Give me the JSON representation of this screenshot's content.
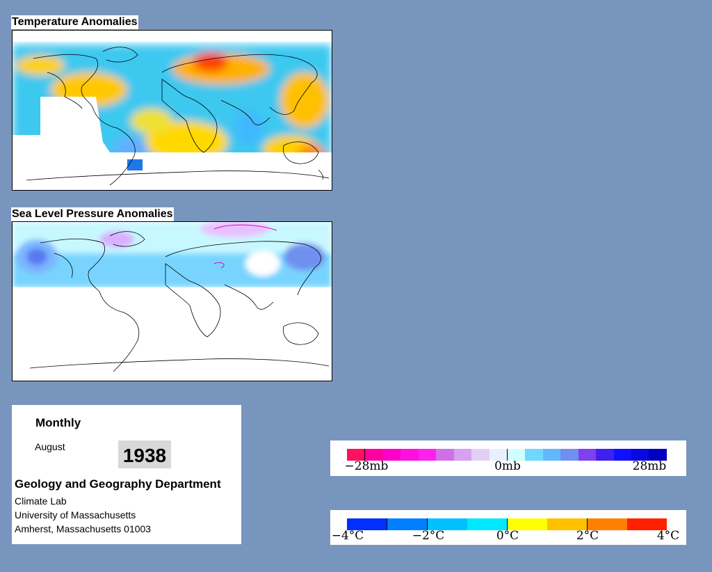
{
  "temperature_panel": {
    "title": "Temperature Anomalies"
  },
  "pressure_panel": {
    "title": "Sea Level Pressure Anomalies"
  },
  "info": {
    "frequency": "Monthly",
    "month": "August",
    "year": "1938",
    "department": "Geology and Geography Department",
    "address_lines": [
      "Climate Lab",
      "University of Massachusetts",
      "Amherst, Massachusetts 01003"
    ]
  },
  "pressure_legend": {
    "labels": [
      "−28mb",
      "0mb",
      "28mb"
    ],
    "colors": [
      "#ff1060",
      "#ff00a0",
      "#ff00c8",
      "#ff10e0",
      "#ff20f0",
      "#d070e8",
      "#d8a0f0",
      "#e0d0f8",
      "#e8f0ff",
      "#d0ffff",
      "#70d8ff",
      "#60b8ff",
      "#7090f0",
      "#8040f0",
      "#4020f0",
      "#1010ff",
      "#0808e0",
      "#0000c0"
    ]
  },
  "temperature_legend": {
    "labels": [
      "−4°C",
      "−2°C",
      "0°C",
      "2°C",
      "4°C"
    ],
    "colors": [
      "#0030ff",
      "#0080ff",
      "#00c0ff",
      "#00e8ff",
      "#ffff00",
      "#ffc000",
      "#ff8000",
      "#ff2000"
    ]
  }
}
